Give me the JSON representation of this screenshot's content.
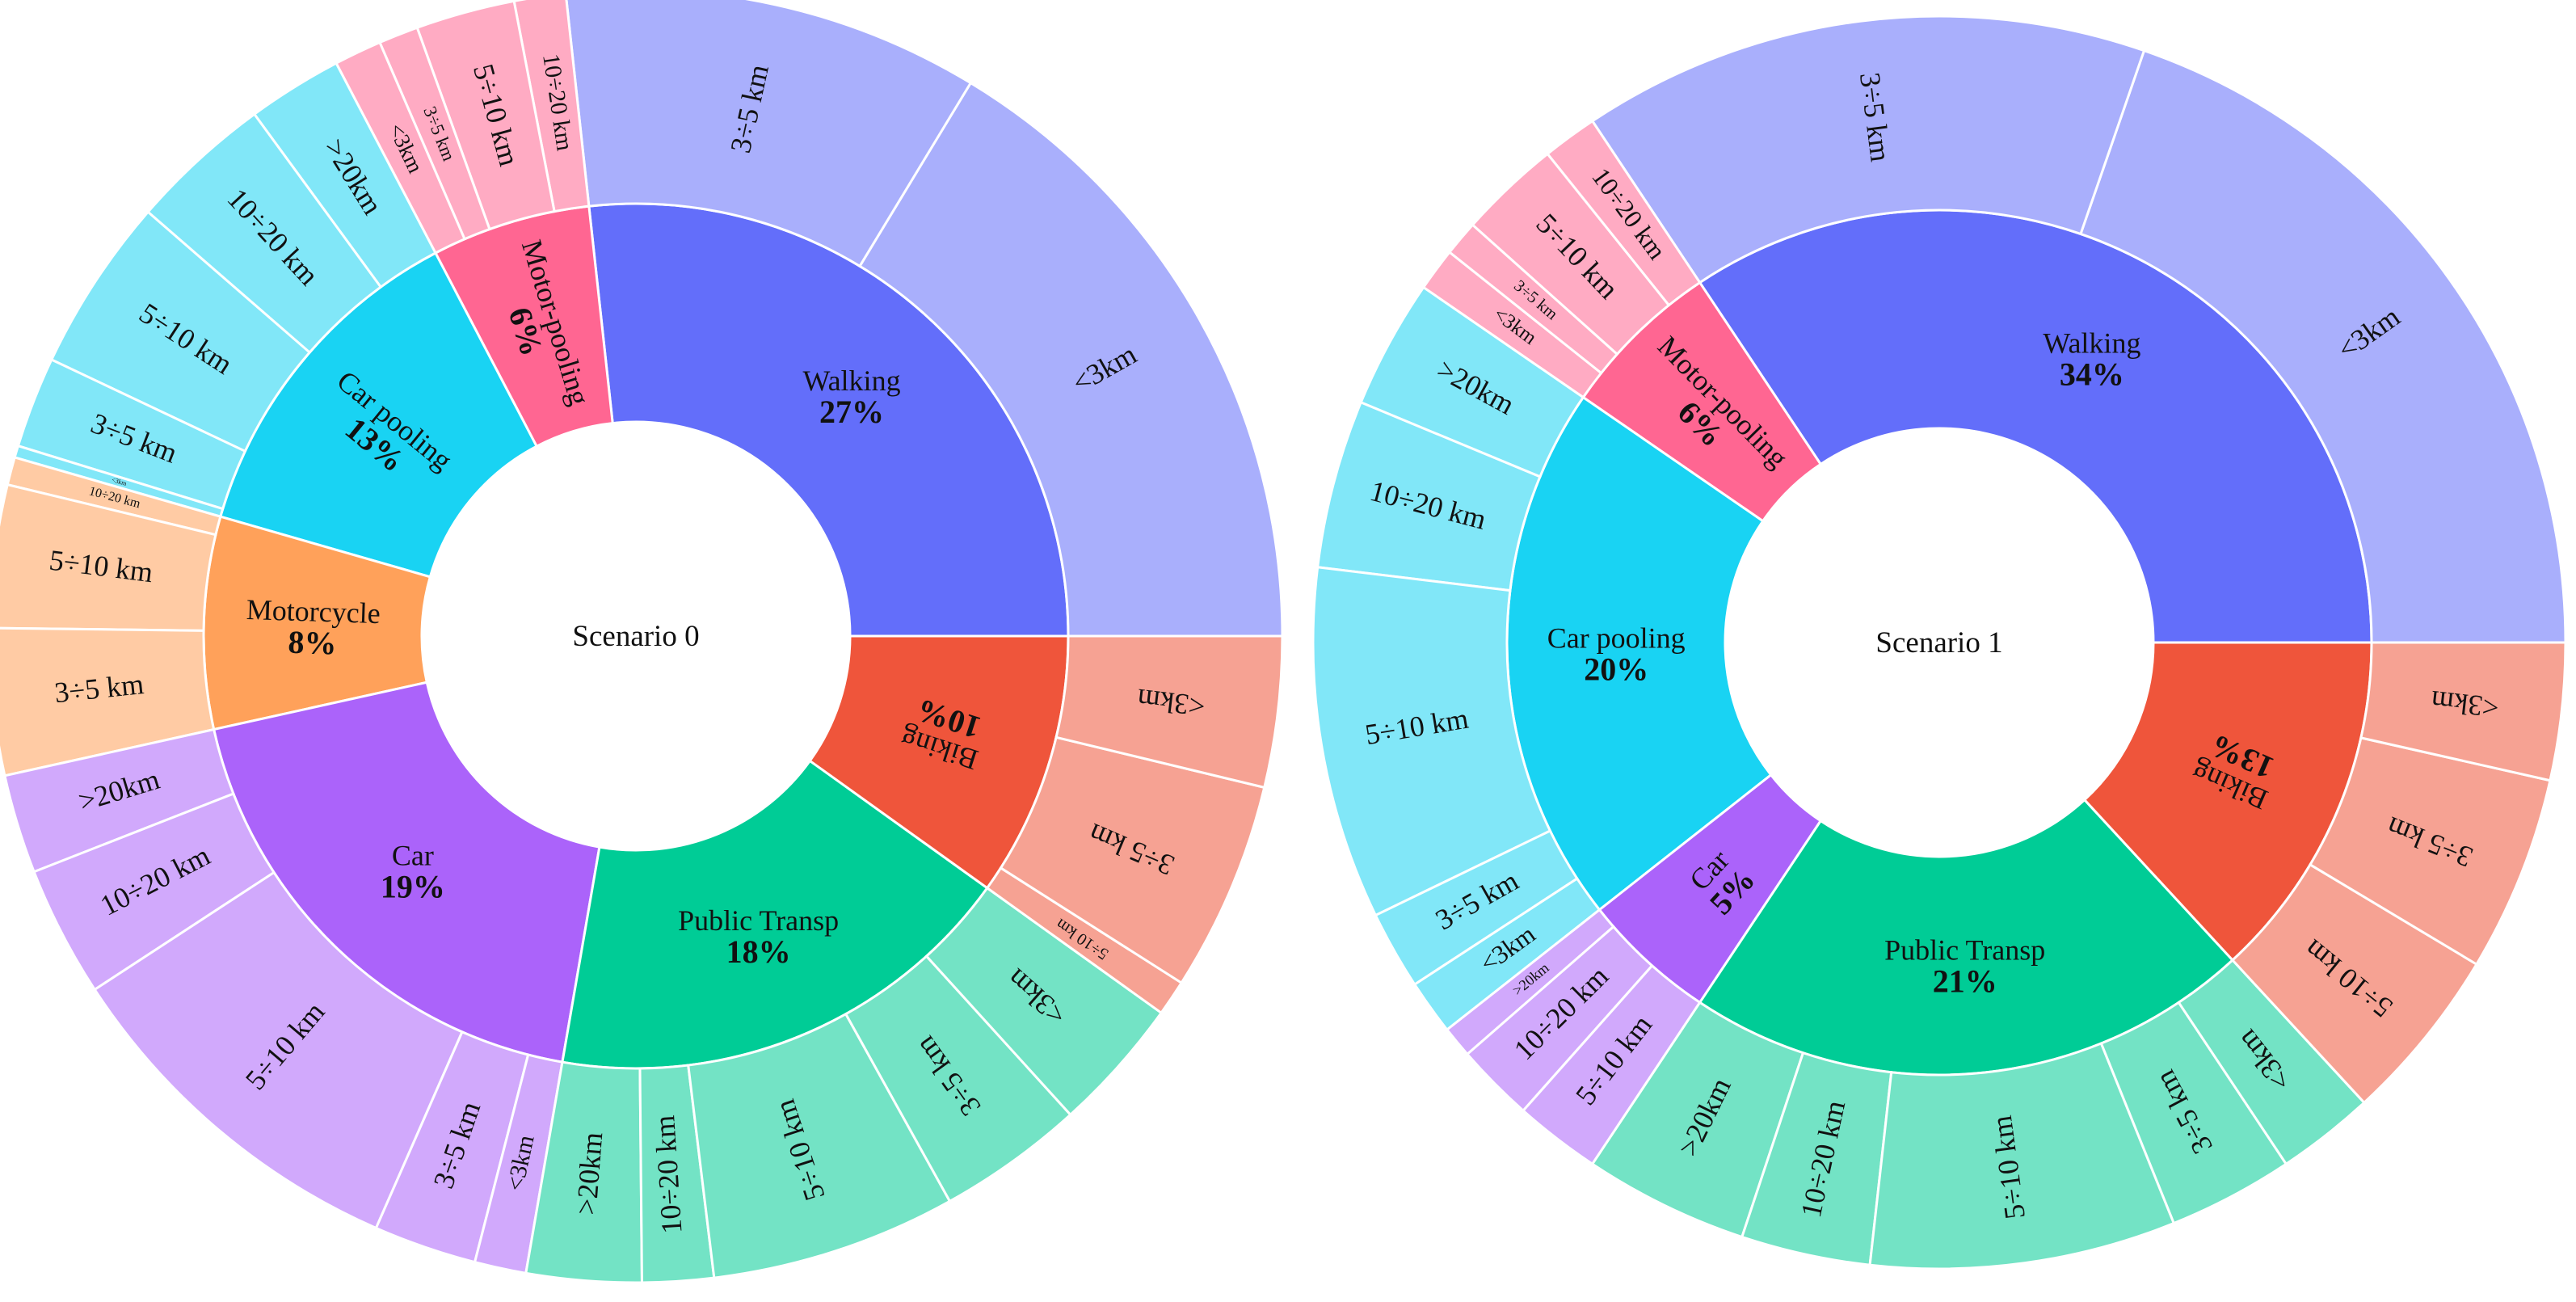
{
  "chart_data": [
    {
      "type": "sunburst",
      "title": "Scenario 0",
      "categories": [
        {
          "name": "Walking",
          "percent_label": "27%",
          "value": 27,
          "color": "#636efa",
          "children": [
            {
              "name": "<3km",
              "value": 16.5
            },
            {
              "name": "3÷5 km",
              "value": 10.5
            }
          ]
        },
        {
          "name": "Motor-pooling",
          "percent_label": "6%",
          "value": 6,
          "color": "#ff6692",
          "children": [
            {
              "name": "10÷20 km",
              "value": 1.3
            },
            {
              "name": "5÷10 km",
              "value": 2.5
            },
            {
              "name": "3÷5 km",
              "value": 1.0
            },
            {
              "name": "<3km",
              "value": 1.2
            }
          ]
        },
        {
          "name": "Car pooling",
          "percent_label": "13%",
          "value": 13,
          "color": "#19d3f3",
          "children": [
            {
              "name": ">20km",
              "value": 2.4
            },
            {
              "name": "10÷20 km",
              "value": 3.6
            },
            {
              "name": "5÷10 km",
              "value": 4.4
            },
            {
              "name": "3÷5 km",
              "value": 2.3
            },
            {
              "name": "<3km",
              "value": 0.3
            }
          ]
        },
        {
          "name": "Motorcycle",
          "percent_label": "8%",
          "value": 8,
          "color": "#ffa15a",
          "children": [
            {
              "name": "10÷20 km",
              "value": 0.7
            },
            {
              "name": "5÷10 km",
              "value": 3.6
            },
            {
              "name": "3÷5 km",
              "value": 3.7
            }
          ]
        },
        {
          "name": "Car",
          "percent_label": "19%",
          "value": 19,
          "color": "#ab63fa",
          "children": [
            {
              "name": ">20km",
              "value": 2.5
            },
            {
              "name": "10÷20 km",
              "value": 3.3
            },
            {
              "name": "5÷10 km",
              "value": 9.3
            },
            {
              "name": "3÷5 km",
              "value": 2.6
            },
            {
              "name": "<3km",
              "value": 1.3
            }
          ]
        },
        {
          "name": "Public Transp",
          "percent_label": "18%",
          "value": 18,
          "color": "#00cc96",
          "children": [
            {
              "name": ">20km",
              "value": 2.9
            },
            {
              "name": "10÷20 km",
              "value": 1.8
            },
            {
              "name": "5÷10 km",
              "value": 6.2
            },
            {
              "name": "3÷5 km",
              "value": 3.7
            },
            {
              "name": "<3km",
              "value": 3.4
            }
          ]
        },
        {
          "name": "Biking",
          "percent_label": "10%",
          "value": 10,
          "color": "#ef553b",
          "children": [
            {
              "name": "5÷10 km",
              "value": 0.9
            },
            {
              "name": "3÷5 km",
              "value": 5.3
            },
            {
              "name": "<3km",
              "value": 3.8
            }
          ]
        }
      ]
    },
    {
      "type": "sunburst",
      "title": "Scenario 1",
      "categories": [
        {
          "name": "Walking",
          "percent_label": "34%",
          "value": 34,
          "color": "#636efa",
          "children": [
            {
              "name": "<3km",
              "value": 19.5
            },
            {
              "name": "3÷5 km",
              "value": 14.5
            }
          ]
        },
        {
          "name": "Motor-pooling",
          "percent_label": "6%",
          "value": 6,
          "color": "#ff6692",
          "children": [
            {
              "name": "10÷20 km",
              "value": 1.4
            },
            {
              "name": "5÷10 km",
              "value": 2.6
            },
            {
              "name": "3÷5 km",
              "value": 0.9
            },
            {
              "name": "<3km",
              "value": 1.1
            }
          ]
        },
        {
          "name": "Car pooling",
          "percent_label": "20%",
          "value": 20,
          "color": "#19d3f3",
          "children": [
            {
              "name": ">20km",
              "value": 3.3
            },
            {
              "name": "10÷20 km",
              "value": 4.3
            },
            {
              "name": "5÷10 km",
              "value": 9.0
            },
            {
              "name": "3÷5 km",
              "value": 2.0
            },
            {
              "name": "<3km",
              "value": 1.4
            }
          ]
        },
        {
          "name": "Car",
          "percent_label": "5%",
          "value": 5,
          "color": "#ab63fa",
          "children": [
            {
              "name": ">20km",
              "value": 0.8
            },
            {
              "name": "10÷20 km",
              "value": 2.0
            },
            {
              "name": "5÷10 km",
              "value": 2.2
            }
          ]
        },
        {
          "name": "Public Transp",
          "percent_label": "21%",
          "value": 21,
          "color": "#00cc96",
          "children": [
            {
              "name": ">20km",
              "value": 4.2
            },
            {
              "name": "10÷20 km",
              "value": 3.3
            },
            {
              "name": "5÷10 km",
              "value": 7.8
            },
            {
              "name": "3÷5 km",
              "value": 3.2
            },
            {
              "name": "<3km",
              "value": 2.5
            }
          ]
        },
        {
          "name": "Biking",
          "percent_label": "13%",
          "value": 13,
          "color": "#ef553b",
          "children": [
            {
              "name": "5÷10 km",
              "value": 4.5
            },
            {
              "name": "3÷5 km",
              "value": 5.0
            },
            {
              "name": "<3km",
              "value": 3.5
            }
          ]
        }
      ]
    }
  ]
}
